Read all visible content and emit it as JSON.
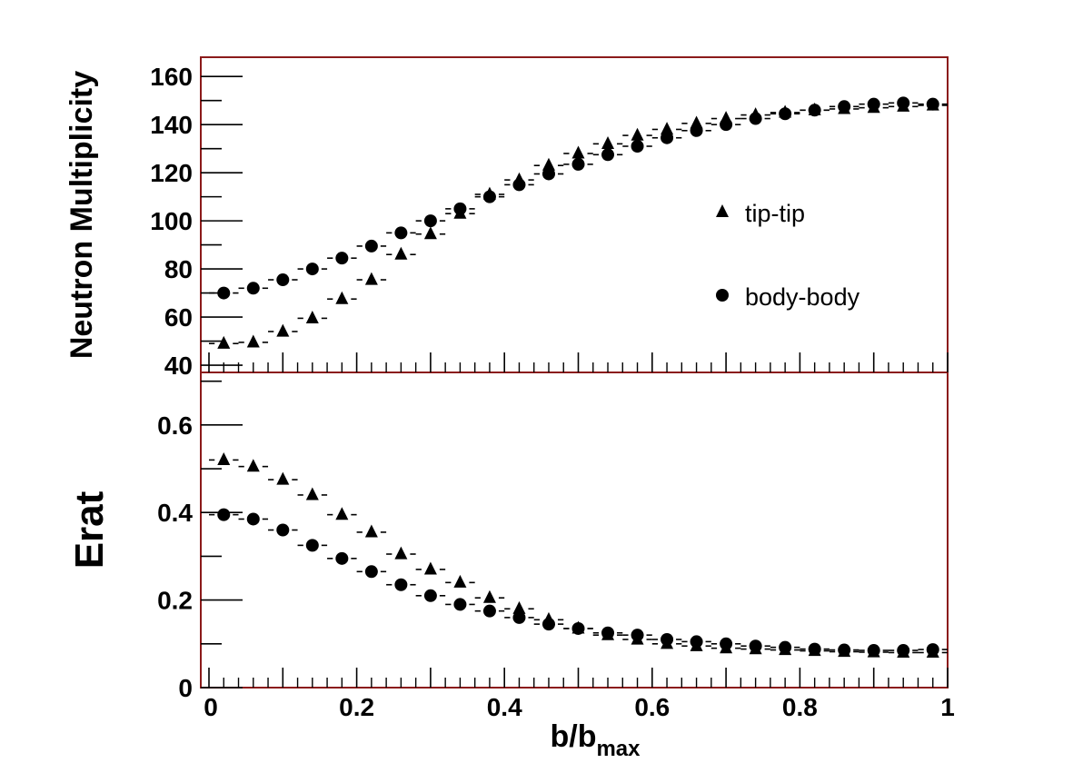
{
  "chart_data": [
    {
      "type": "scatter",
      "panel": "top",
      "ylabel": "Neutron Multiplicity",
      "ylim": [
        37,
        168
      ],
      "xlim": [
        0,
        1
      ],
      "yticks": [
        40,
        60,
        80,
        100,
        120,
        140,
        160
      ],
      "ytick_labels": [
        "40",
        "60",
        "80",
        "100",
        "120",
        "140",
        "160"
      ],
      "legend": [
        {
          "label": "tip-tip",
          "marker": "triangle"
        },
        {
          "label": "body-body",
          "marker": "circle"
        }
      ],
      "legend_position": "middle-right",
      "series": [
        {
          "name": "tip-tip",
          "marker": "triangle",
          "x": [
            0.02,
            0.06,
            0.1,
            0.14,
            0.18,
            0.22,
            0.26,
            0.3,
            0.34,
            0.38,
            0.42,
            0.46,
            0.5,
            0.54,
            0.58,
            0.62,
            0.66,
            0.7,
            0.74,
            0.78,
            0.82,
            0.86,
            0.9,
            0.94,
            0.98
          ],
          "y": [
            49,
            49.5,
            54,
            59.5,
            67.5,
            75.5,
            86,
            94.5,
            103,
            111,
            117,
            123,
            128,
            132,
            135.5,
            138,
            140.5,
            142.5,
            144,
            145,
            146,
            146.5,
            147,
            147.5,
            148
          ]
        },
        {
          "name": "body-body",
          "marker": "circle",
          "x": [
            0.02,
            0.06,
            0.1,
            0.14,
            0.18,
            0.22,
            0.26,
            0.3,
            0.34,
            0.38,
            0.42,
            0.46,
            0.5,
            0.54,
            0.58,
            0.62,
            0.66,
            0.7,
            0.74,
            0.78,
            0.82,
            0.86,
            0.9,
            0.94,
            0.98
          ],
          "y": [
            70,
            72,
            75.5,
            80,
            84.5,
            89.5,
            95,
            100,
            105,
            110,
            115,
            119.5,
            123.5,
            127.5,
            131,
            134.5,
            137.5,
            140,
            142.5,
            144.5,
            146,
            147.5,
            148.5,
            149,
            148.5
          ]
        }
      ]
    },
    {
      "type": "scatter",
      "panel": "bottom",
      "ylabel": "Erat",
      "xlabel_main": "b/b",
      "xlabel_sub": "max",
      "ylim": [
        0,
        0.72
      ],
      "xlim": [
        0,
        1
      ],
      "yticks": [
        0,
        0.2,
        0.4,
        0.6
      ],
      "ytick_labels": [
        "0",
        "0.2",
        "0.4",
        "0.6"
      ],
      "xticks": [
        0,
        0.2,
        0.4,
        0.6,
        0.8,
        1
      ],
      "xtick_labels": [
        "0",
        "0.2",
        "0.4",
        "0.6",
        "0.8",
        "1"
      ],
      "series": [
        {
          "name": "tip-tip",
          "marker": "triangle",
          "x": [
            0.02,
            0.06,
            0.1,
            0.14,
            0.18,
            0.22,
            0.26,
            0.3,
            0.34,
            0.38,
            0.42,
            0.46,
            0.5,
            0.54,
            0.58,
            0.62,
            0.66,
            0.7,
            0.74,
            0.78,
            0.82,
            0.86,
            0.9,
            0.94,
            0.98
          ],
          "y": [
            0.52,
            0.505,
            0.475,
            0.44,
            0.395,
            0.355,
            0.305,
            0.27,
            0.24,
            0.205,
            0.18,
            0.155,
            0.135,
            0.12,
            0.11,
            0.1,
            0.095,
            0.09,
            0.088,
            0.086,
            0.084,
            0.082,
            0.081,
            0.08,
            0.08
          ]
        },
        {
          "name": "body-body",
          "marker": "circle",
          "x": [
            0.02,
            0.06,
            0.1,
            0.14,
            0.18,
            0.22,
            0.26,
            0.3,
            0.34,
            0.38,
            0.42,
            0.46,
            0.5,
            0.54,
            0.58,
            0.62,
            0.66,
            0.7,
            0.74,
            0.78,
            0.82,
            0.86,
            0.9,
            0.94,
            0.98
          ],
          "y": [
            0.395,
            0.385,
            0.36,
            0.325,
            0.295,
            0.265,
            0.235,
            0.21,
            0.19,
            0.175,
            0.16,
            0.145,
            0.135,
            0.125,
            0.12,
            0.11,
            0.105,
            0.1,
            0.095,
            0.092,
            0.088,
            0.086,
            0.085,
            0.085,
            0.087
          ]
        }
      ]
    }
  ],
  "colors": {
    "frame": "#8b1a1a",
    "marker": "#000000"
  }
}
